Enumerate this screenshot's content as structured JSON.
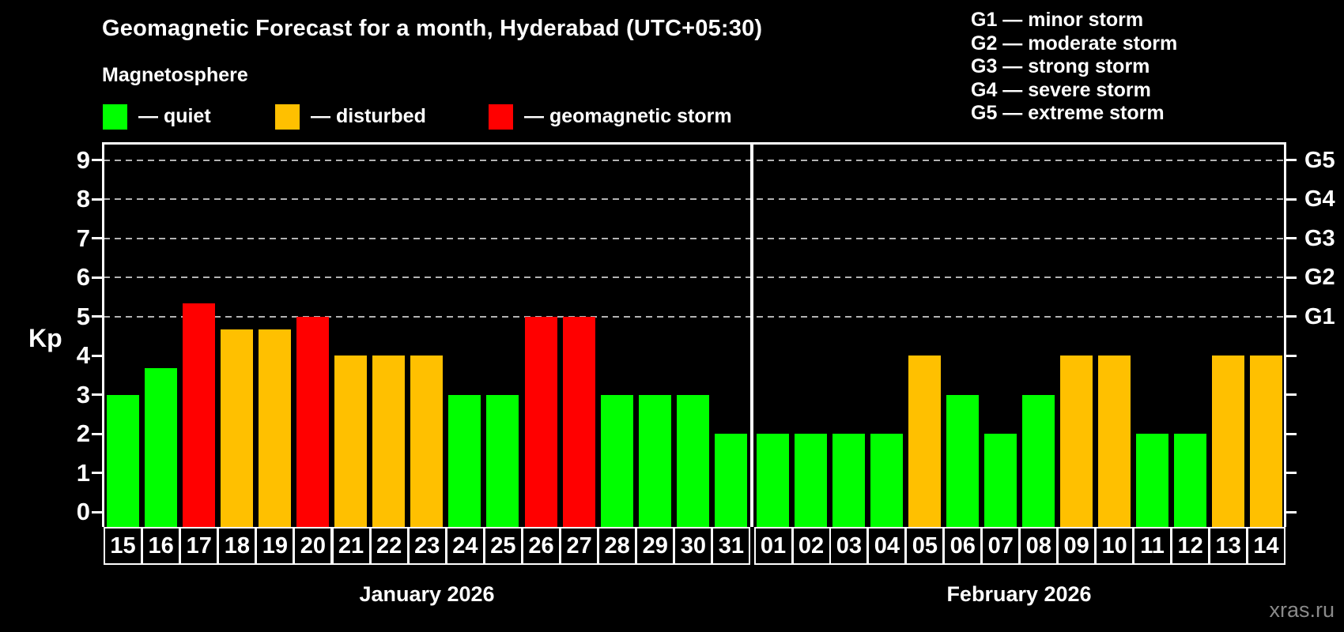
{
  "title": "Geomagnetic Forecast for a month, Hyderabad (UTC+05:30)",
  "subtitle": "Magnetosphere",
  "legend": {
    "items": [
      {
        "key": "quiet",
        "label": "— quiet",
        "color": "#00ff00"
      },
      {
        "key": "disturbed",
        "label": "— disturbed",
        "color": "#ffc000"
      },
      {
        "key": "storm",
        "label": "— geomagnetic storm",
        "color": "#ff0000"
      }
    ]
  },
  "storm_scale_legend": [
    "G1 — minor storm",
    "G2 — moderate storm",
    "G3 — strong storm",
    "G4 — severe storm",
    "G5 — extreme storm"
  ],
  "watermark": "xras.ru",
  "chart_data": {
    "type": "bar",
    "ylabel": "Kp",
    "ylim": [
      -0.4,
      9.4
    ],
    "yticks": [
      0,
      1,
      2,
      3,
      4,
      5,
      6,
      7,
      8,
      9
    ],
    "gridlines": [
      5,
      6,
      7,
      8,
      9
    ],
    "grid_style": "dashed",
    "right_axis_labels": [
      {
        "kp": 5,
        "label": "G1"
      },
      {
        "kp": 6,
        "label": "G2"
      },
      {
        "kp": 7,
        "label": "G3"
      },
      {
        "kp": 8,
        "label": "G4"
      },
      {
        "kp": 9,
        "label": "G5"
      }
    ],
    "colors": {
      "quiet": "#00ff00",
      "disturbed": "#ffc000",
      "storm": "#ff0000"
    },
    "months": [
      {
        "label": "January 2026",
        "days": [
          {
            "day": "15",
            "kp": 3,
            "level": "quiet"
          },
          {
            "day": "16",
            "kp": 3.67,
            "level": "quiet"
          },
          {
            "day": "17",
            "kp": 5.33,
            "level": "storm"
          },
          {
            "day": "18",
            "kp": 4.67,
            "level": "disturbed"
          },
          {
            "day": "19",
            "kp": 4.67,
            "level": "disturbed"
          },
          {
            "day": "20",
            "kp": 5,
            "level": "storm"
          },
          {
            "day": "21",
            "kp": 4,
            "level": "disturbed"
          },
          {
            "day": "22",
            "kp": 4,
            "level": "disturbed"
          },
          {
            "day": "23",
            "kp": 4,
            "level": "disturbed"
          },
          {
            "day": "24",
            "kp": 3,
            "level": "quiet"
          },
          {
            "day": "25",
            "kp": 3,
            "level": "quiet"
          },
          {
            "day": "26",
            "kp": 5,
            "level": "storm"
          },
          {
            "day": "27",
            "kp": 5,
            "level": "storm"
          },
          {
            "day": "28",
            "kp": 3,
            "level": "quiet"
          },
          {
            "day": "29",
            "kp": 3,
            "level": "quiet"
          },
          {
            "day": "30",
            "kp": 3,
            "level": "quiet"
          },
          {
            "day": "31",
            "kp": 2,
            "level": "quiet"
          }
        ]
      },
      {
        "label": "February 2026",
        "days": [
          {
            "day": "01",
            "kp": 2,
            "level": "quiet"
          },
          {
            "day": "02",
            "kp": 2,
            "level": "quiet"
          },
          {
            "day": "03",
            "kp": 2,
            "level": "quiet"
          },
          {
            "day": "04",
            "kp": 2,
            "level": "quiet"
          },
          {
            "day": "05",
            "kp": 4,
            "level": "disturbed"
          },
          {
            "day": "06",
            "kp": 3,
            "level": "quiet"
          },
          {
            "day": "07",
            "kp": 2,
            "level": "quiet"
          },
          {
            "day": "08",
            "kp": 3,
            "level": "quiet"
          },
          {
            "day": "09",
            "kp": 4,
            "level": "disturbed"
          },
          {
            "day": "10",
            "kp": 4,
            "level": "disturbed"
          },
          {
            "day": "11",
            "kp": 2,
            "level": "quiet"
          },
          {
            "day": "12",
            "kp": 2,
            "level": "quiet"
          },
          {
            "day": "13",
            "kp": 4,
            "level": "disturbed"
          },
          {
            "day": "14",
            "kp": 4,
            "level": "disturbed"
          }
        ]
      }
    ]
  }
}
